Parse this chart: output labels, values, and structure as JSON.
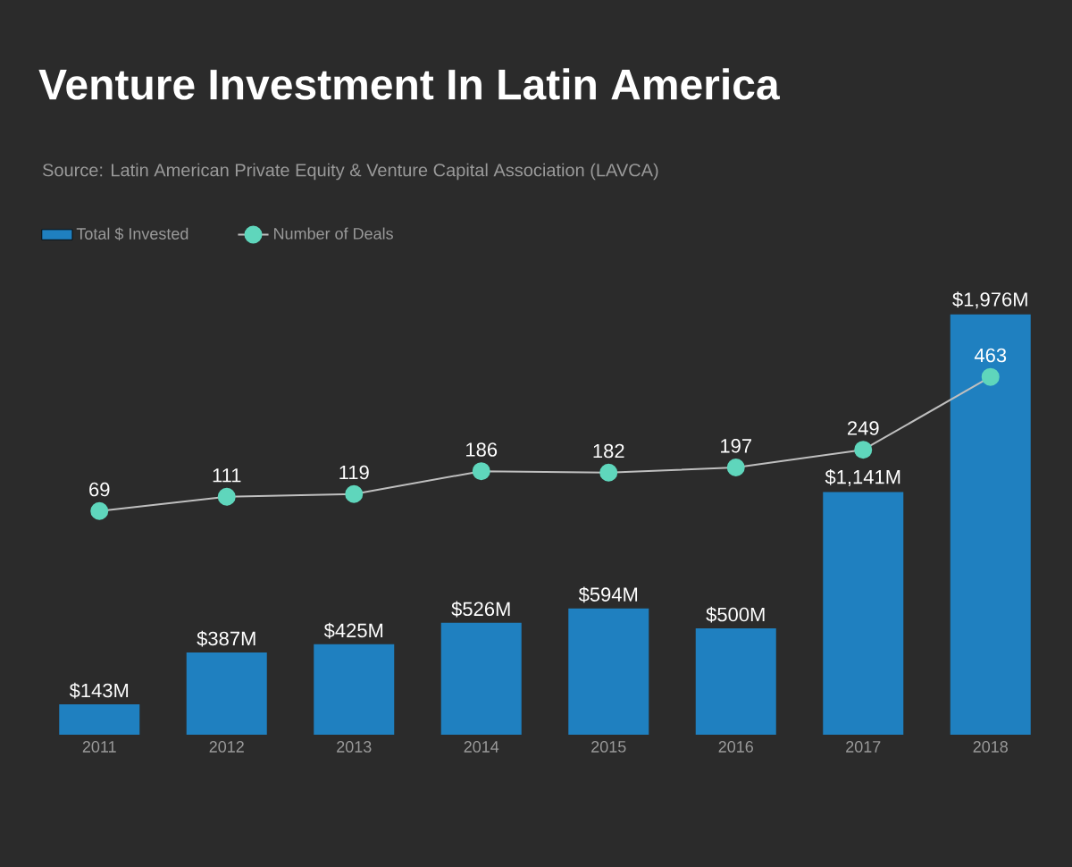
{
  "chart_data": {
    "type": "bar",
    "title": "Venture Investment In Latin America",
    "annotations": [
      "Source: Latin American Private Equity & Venture Capital Association (LAVCA)"
    ],
    "categories": [
      "2011",
      "2012",
      "2013",
      "2014",
      "2015",
      "2016",
      "2017",
      "2018"
    ],
    "series": [
      {
        "name": "Total $ Invested",
        "color": "#1f80c0",
        "values": [
          143,
          387,
          425,
          526,
          594,
          500,
          1141,
          1976
        ],
        "value_labels": [
          "$143M",
          "$387M",
          "$425M",
          "$526M",
          "$594M",
          "$500M",
          "$1,141M",
          "$1,976M"
        ]
      },
      {
        "name": "Number of Deals",
        "type": "line",
        "axis": "y2",
        "color": "#5fd6bc",
        "values": [
          69,
          111,
          119,
          186,
          182,
          197,
          249,
          463
        ],
        "value_labels": [
          "69",
          "111",
          "119",
          "186",
          "182",
          "197",
          "249",
          "463"
        ]
      }
    ],
    "marker": "circle",
    "legend": "top left"
  }
}
